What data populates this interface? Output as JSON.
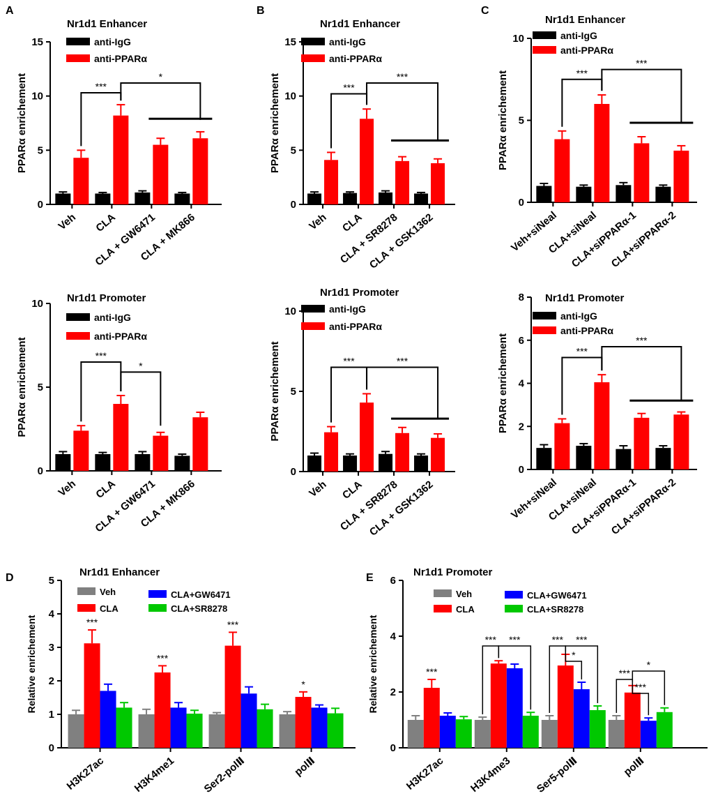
{
  "colors": {
    "igg": "#000000",
    "ppar": "#ff0000",
    "veh": "#808080",
    "cla": "#ff0000",
    "gw": "#0000ff",
    "sr": "#00c800",
    "axis": "#000000"
  },
  "chart_data": [
    {
      "id": "A-top",
      "panel_label": "A",
      "type": "bar",
      "title": "Nr1d1 Enhancer",
      "ylabel": "PPARα enrichement",
      "ylim": [
        0,
        15
      ],
      "yticks": [
        0,
        5,
        10,
        15
      ],
      "categories": [
        "Veh",
        "CLA",
        "CLA + GW6471",
        "CLA + MK866"
      ],
      "series": [
        {
          "name": "anti-IgG",
          "color_key": "igg",
          "values": [
            1.0,
            1.0,
            1.1,
            1.0
          ],
          "errors": [
            0.15,
            0.1,
            0.15,
            0.1
          ]
        },
        {
          "name": "anti-PPARα",
          "color_key": "ppar",
          "values": [
            4.3,
            8.2,
            5.5,
            6.1
          ],
          "errors": [
            0.7,
            1.0,
            0.6,
            0.6
          ]
        }
      ],
      "annotations": [
        {
          "type": "bracket",
          "from": 0,
          "to": 1,
          "level": 10.3,
          "label": "***"
        },
        {
          "type": "bracket",
          "from": 1,
          "to": 3,
          "level": 11.2,
          "label": "*",
          "drop_to": 7.8
        },
        {
          "type": "line",
          "from": 2,
          "to": 3,
          "level": 7.9
        }
      ]
    },
    {
      "id": "B-top",
      "panel_label": "B",
      "type": "bar",
      "title": "Nr1d1 Enhancer",
      "ylabel": "PPARα enrichement",
      "ylim": [
        0,
        15
      ],
      "yticks": [
        0,
        5,
        10,
        15
      ],
      "categories": [
        "Veh",
        "CLA",
        "CLA + SR8278",
        "CLA + GSK1362"
      ],
      "series": [
        {
          "name": "anti-IgG",
          "color_key": "igg",
          "values": [
            1.0,
            1.05,
            1.1,
            1.0
          ],
          "errors": [
            0.15,
            0.1,
            0.15,
            0.1
          ]
        },
        {
          "name": "anti-PPARα",
          "color_key": "ppar",
          "values": [
            4.1,
            7.9,
            4.0,
            3.8
          ],
          "errors": [
            0.7,
            0.9,
            0.4,
            0.4
          ]
        }
      ],
      "annotations": [
        {
          "type": "bracket",
          "from": 0,
          "to": 1,
          "level": 10.2,
          "label": "***"
        },
        {
          "type": "bracket",
          "from": 1,
          "to": 3,
          "level": 11.2,
          "label": "***",
          "drop_to": 5.9
        },
        {
          "type": "line",
          "from": 2,
          "to": 3,
          "level": 5.9
        }
      ]
    },
    {
      "id": "C-top",
      "panel_label": "C",
      "type": "bar",
      "title": "Nr1d1 Enhancer",
      "ylabel": "PPARα enrichement",
      "ylim": [
        0,
        10
      ],
      "yticks": [
        0,
        5,
        10
      ],
      "categories": [
        "Veh+siNeal",
        "CLA+siNeal",
        "CLA+siPPARα-1",
        "CLA+siPPARα-2"
      ],
      "series": [
        {
          "name": "anti-IgG",
          "color_key": "igg",
          "values": [
            1.0,
            0.95,
            1.05,
            0.95
          ],
          "errors": [
            0.15,
            0.1,
            0.15,
            0.1
          ]
        },
        {
          "name": "anti-PPARα",
          "color_key": "ppar",
          "values": [
            3.85,
            6.0,
            3.6,
            3.15
          ],
          "errors": [
            0.5,
            0.55,
            0.4,
            0.3
          ]
        }
      ],
      "annotations": [
        {
          "type": "bracket",
          "from": 0,
          "to": 1,
          "level": 7.5,
          "label": "***"
        },
        {
          "type": "bracket",
          "from": 1,
          "to": 3,
          "level": 8.1,
          "label": "***",
          "drop_to": 4.85
        },
        {
          "type": "line",
          "from": 2,
          "to": 3,
          "level": 4.85
        }
      ]
    },
    {
      "id": "A-bottom",
      "type": "bar",
      "title": "Nr1d1 Promoter",
      "ylabel": "PPARα enrichement",
      "ylim": [
        0,
        10
      ],
      "yticks": [
        0,
        5,
        10
      ],
      "categories": [
        "Veh",
        "CLA",
        "CLA + GW6471",
        "CLA + MK866"
      ],
      "series": [
        {
          "name": "anti-IgG",
          "color_key": "igg",
          "values": [
            1.0,
            1.0,
            1.0,
            0.9
          ],
          "errors": [
            0.15,
            0.1,
            0.15,
            0.1
          ]
        },
        {
          "name": "anti-PPARα",
          "color_key": "ppar",
          "values": [
            2.4,
            4.0,
            2.1,
            3.2
          ],
          "errors": [
            0.3,
            0.5,
            0.2,
            0.3
          ]
        }
      ],
      "annotations": [
        {
          "type": "bracket",
          "from": 0,
          "to": 1,
          "level": 6.5,
          "label": "***"
        },
        {
          "type": "bracket",
          "from": 1,
          "to": 2,
          "level": 5.9,
          "label": "*",
          "drop_to": 2.7
        }
      ]
    },
    {
      "id": "B-bottom",
      "type": "bar",
      "title": "Nr1d1 Promoter",
      "ylabel": "PPARα enrichement",
      "ylim": [
        0,
        10
      ],
      "yticks": [
        0,
        5,
        10
      ],
      "categories": [
        "Veh",
        "CLA",
        "CLA + SR8278",
        "CLA + GSK1362"
      ],
      "series": [
        {
          "name": "anti-IgG",
          "color_key": "igg",
          "values": [
            1.0,
            1.0,
            1.1,
            1.0
          ],
          "errors": [
            0.15,
            0.1,
            0.15,
            0.1
          ]
        },
        {
          "name": "anti-PPARα",
          "color_key": "ppar",
          "values": [
            2.45,
            4.3,
            2.4,
            2.1
          ],
          "errors": [
            0.35,
            0.55,
            0.35,
            0.25
          ]
        }
      ],
      "annotations": [
        {
          "type": "bracket",
          "from": 0,
          "to": 1,
          "level": 6.5,
          "label": "***"
        },
        {
          "type": "bracket",
          "from": 1,
          "to": 3,
          "level": 6.5,
          "label": "***",
          "drop_to": 3.3
        },
        {
          "type": "line",
          "from": 2,
          "to": 3,
          "level": 3.3
        }
      ]
    },
    {
      "id": "C-bottom",
      "type": "bar",
      "title": "Nr1d1 Promoter",
      "ylabel": "PPARα enrichement",
      "ylim": [
        0,
        8
      ],
      "yticks": [
        0,
        2,
        4,
        6,
        8
      ],
      "categories": [
        "Veh+siNeal",
        "CLA+siNeal",
        "CLA+siPPARα-1",
        "CLA+siPPARα-2"
      ],
      "series": [
        {
          "name": "anti-IgG",
          "color_key": "igg",
          "values": [
            1.0,
            1.1,
            0.95,
            1.0
          ],
          "errors": [
            0.15,
            0.1,
            0.15,
            0.1
          ]
        },
        {
          "name": "anti-PPARα",
          "color_key": "ppar",
          "values": [
            2.15,
            4.05,
            2.4,
            2.55
          ],
          "errors": [
            0.2,
            0.35,
            0.2,
            0.12
          ]
        }
      ],
      "annotations": [
        {
          "type": "bracket",
          "from": 0,
          "to": 1,
          "level": 5.2,
          "label": "***"
        },
        {
          "type": "bracket",
          "from": 1,
          "to": 3,
          "level": 5.7,
          "label": "***",
          "drop_to": 3.2
        },
        {
          "type": "line",
          "from": 2,
          "to": 3,
          "level": 3.2
        }
      ]
    },
    {
      "id": "D",
      "panel_label": "D",
      "type": "bar",
      "title": "Nr1d1 Enhancer",
      "ylabel": "Relative enrichement",
      "ylim": [
        0,
        5
      ],
      "yticks": [
        0,
        1,
        2,
        3,
        4,
        5
      ],
      "categories": [
        "H3K27ac",
        "H3K4me1",
        "Ser2-polⅡ",
        "polⅡ"
      ],
      "series": [
        {
          "name": "Veh",
          "color_key": "veh",
          "values": [
            1.0,
            1.0,
            1.0,
            1.0
          ],
          "errors": [
            0.12,
            0.15,
            0.05,
            0.08
          ]
        },
        {
          "name": "CLA",
          "color_key": "cla",
          "values": [
            3.12,
            2.25,
            3.05,
            1.52
          ],
          "errors": [
            0.4,
            0.2,
            0.4,
            0.15
          ]
        },
        {
          "name": "CLA+GW6471",
          "color_key": "gw",
          "values": [
            1.7,
            1.2,
            1.62,
            1.2
          ],
          "errors": [
            0.2,
            0.15,
            0.2,
            0.08
          ]
        },
        {
          "name": "CLA+SR8278",
          "color_key": "sr",
          "values": [
            1.2,
            1.02,
            1.15,
            1.03
          ],
          "errors": [
            0.15,
            0.1,
            0.15,
            0.15
          ]
        }
      ],
      "annotations": [
        {
          "type": "star",
          "group": 0,
          "series": 1,
          "label": "***"
        },
        {
          "type": "star",
          "group": 1,
          "series": 1,
          "label": "***"
        },
        {
          "type": "star",
          "group": 2,
          "series": 1,
          "label": "***"
        },
        {
          "type": "star",
          "group": 3,
          "series": 1,
          "label": "*"
        }
      ]
    },
    {
      "id": "E",
      "panel_label": "E",
      "type": "bar",
      "title": "Nr1d1 Promoter",
      "ylabel": "Relative enrichement",
      "ylim": [
        0,
        6
      ],
      "yticks": [
        0,
        2,
        4,
        6
      ],
      "categories": [
        "H3K27ac",
        "H3K4me3",
        "Ser5-polⅡ",
        "polⅡ"
      ],
      "series": [
        {
          "name": "Veh",
          "color_key": "veh",
          "values": [
            1.0,
            1.0,
            1.0,
            1.0
          ],
          "errors": [
            0.15,
            0.1,
            0.15,
            0.15
          ]
        },
        {
          "name": "CLA",
          "color_key": "cla",
          "values": [
            2.15,
            3.02,
            2.95,
            1.98
          ],
          "errors": [
            0.3,
            0.1,
            0.4,
            0.25
          ]
        },
        {
          "name": "CLA+GW6471",
          "color_key": "gw",
          "values": [
            1.15,
            2.85,
            2.1,
            0.97
          ],
          "errors": [
            0.1,
            0.15,
            0.25,
            0.1
          ]
        },
        {
          "name": "CLA+SR8278",
          "color_key": "sr",
          "values": [
            1.02,
            1.15,
            1.35,
            1.28
          ],
          "errors": [
            0.1,
            0.12,
            0.15,
            0.15
          ]
        }
      ],
      "annotations": [
        {
          "type": "star",
          "group": 0,
          "series": 1,
          "label": "***"
        },
        {
          "type": "sigbar",
          "group": 1,
          "from": 0,
          "to": 1,
          "level": 3.65,
          "label": "***"
        },
        {
          "type": "sigbar",
          "group": 1,
          "from": 1,
          "to": 3,
          "level": 3.65,
          "label": "***"
        },
        {
          "type": "sigbar",
          "group": 2,
          "from": 0,
          "to": 1,
          "level": 3.65,
          "label": "***"
        },
        {
          "type": "sigbar",
          "group": 2,
          "from": 1,
          "to": 2,
          "level": 3.1,
          "label": "*"
        },
        {
          "type": "sigbar",
          "group": 2,
          "from": 1,
          "to": 3,
          "level": 3.65,
          "label": "***"
        },
        {
          "type": "sigbar",
          "group": 3,
          "from": 0,
          "to": 1,
          "level": 2.45,
          "label": "***"
        },
        {
          "type": "sigbar",
          "group": 3,
          "from": 1,
          "to": 2,
          "level": 1.95,
          "label": "***"
        },
        {
          "type": "sigbar",
          "group": 3,
          "from": 1,
          "to": 3,
          "level": 2.75,
          "label": "*"
        }
      ]
    }
  ]
}
